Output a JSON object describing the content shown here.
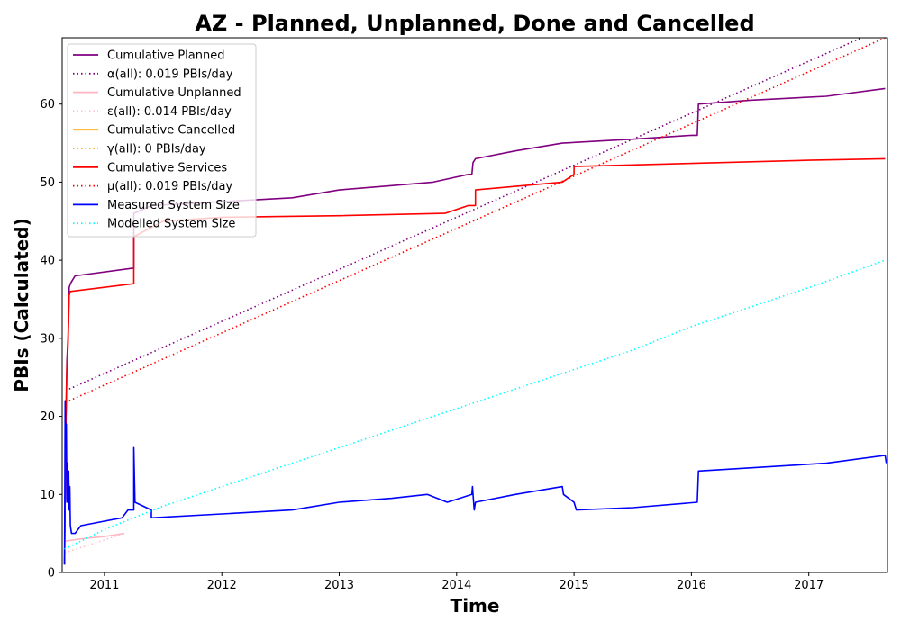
{
  "chart_data": {
    "type": "line",
    "title": "AZ - Planned, Unplanned, Done  and Cancelled",
    "xlabel": "Time",
    "ylabel": "PBIs (Calculated)",
    "xlim": [
      2010.64,
      2017.67
    ],
    "ylim": [
      0,
      68.5
    ],
    "x_ticks": [
      2011,
      2012,
      2013,
      2014,
      2015,
      2016,
      2017
    ],
    "y_ticks": [
      0,
      10,
      20,
      30,
      40,
      50,
      60
    ],
    "grid": false,
    "legend_position": "top-left",
    "series": [
      {
        "name": "Cumulative Planned",
        "color": "#800080",
        "style": "solid",
        "x": [
          2010.66,
          2010.67,
          2010.68,
          2010.69,
          2010.7,
          2010.71,
          2010.73,
          2010.75,
          2011.25,
          2011.25,
          2011.4,
          2012.0,
          2012.6,
          2013.0,
          2013.4,
          2013.8,
          2014.1,
          2014.13,
          2014.14,
          2014.16,
          2014.5,
          2014.9,
          2015.5,
          2016.0,
          2016.05,
          2016.06,
          2016.5,
          2017.15,
          2017.65
        ],
        "y": [
          1,
          18,
          27,
          30,
          36.5,
          37,
          37.5,
          38,
          39,
          46,
          47,
          47.5,
          48,
          49,
          49.5,
          50,
          51,
          51,
          52.5,
          53,
          54,
          55,
          55.5,
          56,
          56,
          60,
          60.5,
          61,
          62
        ]
      },
      {
        "name": "α(all): 0.019 PBIs/day",
        "color": "#800080",
        "style": "dotted",
        "x": [
          2010.7,
          2017.45
        ],
        "y": [
          23.5,
          68.5
        ]
      },
      {
        "name": "Cumulative Unplanned",
        "color": "#ffb6c1",
        "style": "solid",
        "x": [
          2010.66,
          2010.8,
          2011.0,
          2011.17
        ],
        "y": [
          4,
          4.3,
          4.6,
          5
        ]
      },
      {
        "name": "ε(all): 0.014 PBIs/day",
        "color": "#ffc0cb",
        "style": "dotted",
        "x": [
          2010.66,
          2011.17
        ],
        "y": [
          2.5,
          5
        ]
      },
      {
        "name": "Cumulative Cancelled",
        "color": "#ffa500",
        "style": "solid",
        "x": [],
        "y": []
      },
      {
        "name": "γ(all): 0 PBIs/day",
        "color": "#ffa500",
        "style": "dotted",
        "x": [],
        "y": []
      },
      {
        "name": "Cumulative Services",
        "color": "#ff0000",
        "style": "solid",
        "x": [
          2010.66,
          2010.67,
          2010.68,
          2010.69,
          2010.7,
          2010.71,
          2011.25,
          2011.25,
          2011.5,
          2012.0,
          2013.0,
          2013.9,
          2014.1,
          2014.16,
          2014.16,
          2014.9,
          2015.0,
          2015.0,
          2016.0,
          2017.0,
          2017.65
        ],
        "y": [
          1,
          17,
          26,
          29,
          35.5,
          36,
          37,
          43,
          45,
          45.5,
          45.7,
          46,
          47,
          47,
          49,
          50,
          51,
          52,
          52.4,
          52.8,
          53
        ]
      },
      {
        "name": "μ(all): 0.019 PBIs/day",
        "color": "#ff0000",
        "style": "dotted",
        "x": [
          2010.7,
          2017.65
        ],
        "y": [
          22,
          68.5
        ]
      },
      {
        "name": "Measured System Size",
        "color": "#0000ff",
        "style": "solid",
        "x": [
          2010.66,
          2010.665,
          2010.67,
          2010.675,
          2010.68,
          2010.685,
          2010.69,
          2010.695,
          2010.7,
          2010.705,
          2010.71,
          2010.72,
          2010.75,
          2010.8,
          2011.15,
          2011.2,
          2011.25,
          2011.25,
          2011.26,
          2011.4,
          2011.4,
          2012.0,
          2012.6,
          2013.0,
          2013.45,
          2013.75,
          2013.92,
          2014.13,
          2014.135,
          2014.14,
          2014.15,
          2014.16,
          2014.5,
          2014.9,
          2014.91,
          2015.0,
          2015.02,
          2015.5,
          2016.05,
          2016.06,
          2017.15,
          2017.65,
          2017.66
        ],
        "y": [
          1,
          22,
          16,
          19,
          9,
          14,
          10,
          13,
          8,
          11,
          6,
          5,
          5,
          6,
          7,
          8,
          8,
          16,
          9,
          8,
          7,
          7.5,
          8,
          9,
          9.5,
          10,
          9,
          10,
          11,
          10,
          8,
          9,
          10,
          11,
          10,
          9,
          8,
          8.3,
          9,
          13,
          14,
          15,
          14
        ]
      },
      {
        "name": "Modelled System Size",
        "color": "#00ffff",
        "style": "dotted",
        "x": [
          2010.66,
          2011.0,
          2011.5,
          2012.0,
          2012.5,
          2013.0,
          2013.5,
          2014.0,
          2014.5,
          2015.0,
          2015.5,
          2016.0,
          2016.5,
          2017.0,
          2017.65
        ],
        "y": [
          3,
          5.5,
          8.5,
          11,
          13.5,
          16,
          18.5,
          21,
          23.5,
          26,
          28.5,
          31.5,
          34,
          36.5,
          40
        ]
      }
    ]
  }
}
